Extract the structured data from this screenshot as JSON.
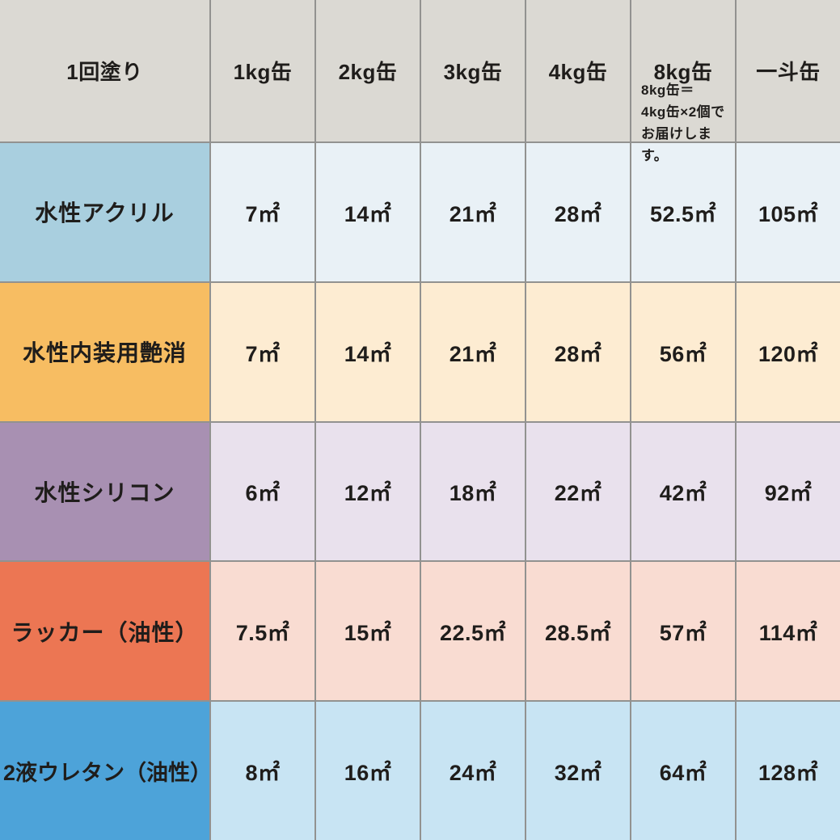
{
  "table": {
    "header": {
      "row_label": "1回塗り",
      "columns": [
        "1kg缶",
        "2kg缶",
        "3kg缶",
        "4kg缶",
        "8kg缶",
        "一斗缶"
      ],
      "note_lines": [
        "8kg缶＝",
        "4kg缶×2個で",
        "お届けします。"
      ]
    },
    "rows": [
      {
        "label": "水性アクリル",
        "label_bg": "#a9cfdf",
        "cell_bg": "#e9f1f6",
        "values": [
          "7㎡",
          "14㎡",
          "21㎡",
          "28㎡",
          "52.5㎡",
          "105㎡"
        ]
      },
      {
        "label": "水性内装用艶消",
        "label_bg": "#f7bd62",
        "cell_bg": "#fdecd2",
        "values": [
          "7㎡",
          "14㎡",
          "21㎡",
          "28㎡",
          "56㎡",
          "120㎡"
        ]
      },
      {
        "label": "水性シリコン",
        "label_bg": "#a890b2",
        "cell_bg": "#e9e1ed",
        "values": [
          "6㎡",
          "12㎡",
          "18㎡",
          "22㎡",
          "42㎡",
          "92㎡"
        ]
      },
      {
        "label": "ラッカー（油性）",
        "label_bg": "#ec7653",
        "cell_bg": "#f9dcd2",
        "values": [
          "7.5㎡",
          "15㎡",
          "22.5㎡",
          "28.5㎡",
          "57㎡",
          "114㎡"
        ]
      },
      {
        "label": "2液ウレタン（油性）",
        "label_bg": "#4da3d9",
        "cell_bg": "#c8e4f3",
        "values": [
          "8㎡",
          "16㎡",
          "24㎡",
          "32㎡",
          "64㎡",
          "128㎡"
        ]
      }
    ],
    "colors": {
      "header_bg": "#dbd9d3",
      "grid_line": "#929290",
      "text": "#1f1d1b"
    }
  },
  "chart_data": {
    "type": "table",
    "title": "1回塗り",
    "columns": [
      "1kg缶",
      "2kg缶",
      "3kg缶",
      "4kg缶",
      "8kg缶",
      "一斗缶"
    ],
    "unit": "㎡",
    "rows": [
      {
        "name": "水性アクリル",
        "values": [
          7,
          14,
          21,
          28,
          52.5,
          105
        ]
      },
      {
        "name": "水性内装用艶消",
        "values": [
          7,
          14,
          21,
          28,
          56,
          120
        ]
      },
      {
        "name": "水性シリコン",
        "values": [
          6,
          12,
          18,
          22,
          42,
          92
        ]
      },
      {
        "name": "ラッカー（油性）",
        "values": [
          7.5,
          15,
          22.5,
          28.5,
          57,
          114
        ]
      },
      {
        "name": "2液ウレタン（油性）",
        "values": [
          8,
          16,
          24,
          32,
          64,
          128
        ]
      }
    ],
    "annotations": [
      "8kg缶＝4kg缶×2個でお届けします。"
    ],
    "legend_position": "none",
    "grid": true
  }
}
